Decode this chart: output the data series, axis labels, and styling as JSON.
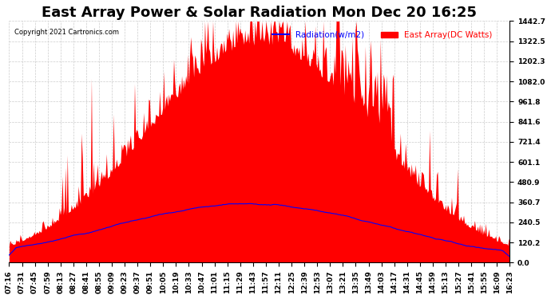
{
  "title": "East Array Power & Solar Radiation Mon Dec 20 16:25",
  "copyright": "Copyright 2021 Cartronics.com",
  "legend_radiation": "Radiation(w/m2)",
  "legend_array": "East Array(DC Watts)",
  "legend_color_radiation": "#0000ff",
  "legend_color_array": "#ff0000",
  "ylabel_right_values": [
    1442.7,
    1322.5,
    1202.3,
    1082.0,
    961.8,
    841.6,
    721.4,
    601.1,
    480.9,
    360.7,
    240.5,
    120.2,
    0.0
  ],
  "ymax": 1442.7,
  "ymin": 0.0,
  "background_color": "#ffffff",
  "plot_bg_color": "#ffffff",
  "grid_color": "#cccccc",
  "fill_color_red": "#ff0000",
  "line_color_blue": "#0000ff",
  "title_fontsize": 13,
  "tick_fontsize": 6.5,
  "num_points": 500,
  "x_tick_labels": [
    "07:16",
    "07:31",
    "07:45",
    "07:59",
    "08:13",
    "08:27",
    "08:41",
    "08:55",
    "09:09",
    "09:23",
    "09:37",
    "09:51",
    "10:05",
    "10:19",
    "10:33",
    "10:47",
    "11:01",
    "11:15",
    "11:29",
    "11:43",
    "11:57",
    "12:11",
    "12:25",
    "12:39",
    "12:53",
    "13:07",
    "13:21",
    "13:35",
    "13:49",
    "14:03",
    "14:17",
    "14:31",
    "14:45",
    "14:59",
    "15:13",
    "15:27",
    "15:41",
    "15:55",
    "16:09",
    "16:23"
  ]
}
